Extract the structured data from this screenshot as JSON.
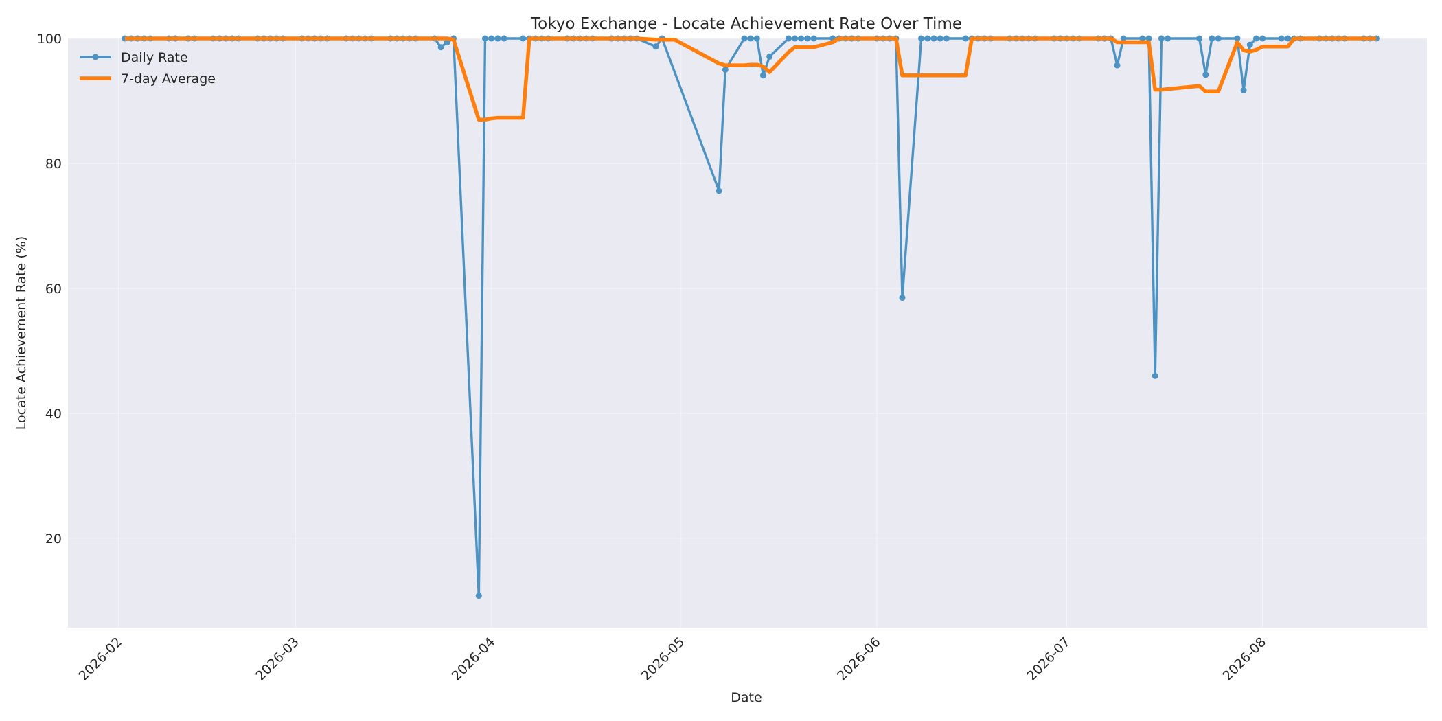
{
  "chart_data": {
    "type": "line",
    "title": "Tokyo Exchange - Locate Achievement Rate Over Time",
    "xlabel": "Date",
    "ylabel": "Locate Achievement Rate (%)",
    "xlim": [
      "2026-01-24",
      "2026-08-27"
    ],
    "ylim": [
      5.7,
      100
    ],
    "yticks": [
      20,
      40,
      60,
      80,
      100
    ],
    "xticks": [
      "2026-02-01",
      "2026-03-01",
      "2026-04-01",
      "2026-05-01",
      "2026-06-01",
      "2026-07-01",
      "2026-08-01"
    ],
    "xtick_labels": [
      "2026-02",
      "2026-03",
      "2026-04",
      "2026-05",
      "2026-06",
      "2026-07",
      "2026-08"
    ],
    "grid": true,
    "legend": "upper-left",
    "colors": {
      "background": "#eaeaf2",
      "daily": "#4c92c3",
      "average": "#ff7f0e"
    },
    "series": [
      {
        "name": "Daily Rate",
        "style": "line-markers",
        "points": [
          [
            "2026-02-02",
            100
          ],
          [
            "2026-02-03",
            100
          ],
          [
            "2026-02-04",
            100
          ],
          [
            "2026-02-05",
            100
          ],
          [
            "2026-02-06",
            100
          ],
          [
            "2026-02-09",
            100
          ],
          [
            "2026-02-10",
            100
          ],
          [
            "2026-02-12",
            100
          ],
          [
            "2026-02-13",
            100
          ],
          [
            "2026-02-16",
            100
          ],
          [
            "2026-02-17",
            100
          ],
          [
            "2026-02-18",
            100
          ],
          [
            "2026-02-19",
            100
          ],
          [
            "2026-02-20",
            100
          ],
          [
            "2026-02-23",
            100
          ],
          [
            "2026-02-24",
            100
          ],
          [
            "2026-02-25",
            100
          ],
          [
            "2026-02-26",
            100
          ],
          [
            "2026-02-27",
            100
          ],
          [
            "2026-03-02",
            100
          ],
          [
            "2026-03-03",
            100
          ],
          [
            "2026-03-04",
            100
          ],
          [
            "2026-03-05",
            100
          ],
          [
            "2026-03-06",
            100
          ],
          [
            "2026-03-09",
            100
          ],
          [
            "2026-03-10",
            100
          ],
          [
            "2026-03-11",
            100
          ],
          [
            "2026-03-12",
            100
          ],
          [
            "2026-03-13",
            100
          ],
          [
            "2026-03-16",
            100
          ],
          [
            "2026-03-17",
            100
          ],
          [
            "2026-03-18",
            100
          ],
          [
            "2026-03-19",
            100
          ],
          [
            "2026-03-20",
            100
          ],
          [
            "2026-03-23",
            100
          ],
          [
            "2026-03-24",
            98.6
          ],
          [
            "2026-03-25",
            99.4
          ],
          [
            "2026-03-26",
            100
          ],
          [
            "2026-03-30",
            10.8
          ],
          [
            "2026-03-31",
            100
          ],
          [
            "2026-04-01",
            100
          ],
          [
            "2026-04-02",
            100
          ],
          [
            "2026-04-03",
            100
          ],
          [
            "2026-04-06",
            100
          ],
          [
            "2026-04-07",
            100
          ],
          [
            "2026-04-08",
            100
          ],
          [
            "2026-04-09",
            100
          ],
          [
            "2026-04-10",
            100
          ],
          [
            "2026-04-13",
            100
          ],
          [
            "2026-04-14",
            100
          ],
          [
            "2026-04-15",
            100
          ],
          [
            "2026-04-16",
            100
          ],
          [
            "2026-04-17",
            100
          ],
          [
            "2026-04-20",
            100
          ],
          [
            "2026-04-21",
            100
          ],
          [
            "2026-04-22",
            100
          ],
          [
            "2026-04-23",
            100
          ],
          [
            "2026-04-24",
            100
          ],
          [
            "2026-04-27",
            98.7
          ],
          [
            "2026-04-28",
            100
          ],
          [
            "2026-05-07",
            75.6
          ],
          [
            "2026-05-08",
            95.0
          ],
          [
            "2026-05-11",
            100
          ],
          [
            "2026-05-12",
            100
          ],
          [
            "2026-05-13",
            100
          ],
          [
            "2026-05-14",
            94.1
          ],
          [
            "2026-05-15",
            97.1
          ],
          [
            "2026-05-18",
            100
          ],
          [
            "2026-05-19",
            100
          ],
          [
            "2026-05-20",
            100
          ],
          [
            "2026-05-21",
            100
          ],
          [
            "2026-05-22",
            100
          ],
          [
            "2026-05-25",
            100
          ],
          [
            "2026-05-26",
            100
          ],
          [
            "2026-05-27",
            100
          ],
          [
            "2026-05-28",
            100
          ],
          [
            "2026-05-29",
            100
          ],
          [
            "2026-06-01",
            100
          ],
          [
            "2026-06-02",
            100
          ],
          [
            "2026-06-03",
            100
          ],
          [
            "2026-06-04",
            100
          ],
          [
            "2026-06-05",
            58.5
          ],
          [
            "2026-06-08",
            100
          ],
          [
            "2026-06-09",
            100
          ],
          [
            "2026-06-10",
            100
          ],
          [
            "2026-06-11",
            100
          ],
          [
            "2026-06-12",
            100
          ],
          [
            "2026-06-15",
            100
          ],
          [
            "2026-06-16",
            100
          ],
          [
            "2026-06-17",
            100
          ],
          [
            "2026-06-18",
            100
          ],
          [
            "2026-06-19",
            100
          ],
          [
            "2026-06-22",
            100
          ],
          [
            "2026-06-23",
            100
          ],
          [
            "2026-06-24",
            100
          ],
          [
            "2026-06-25",
            100
          ],
          [
            "2026-06-26",
            100
          ],
          [
            "2026-06-29",
            100
          ],
          [
            "2026-06-30",
            100
          ],
          [
            "2026-07-01",
            100
          ],
          [
            "2026-07-02",
            100
          ],
          [
            "2026-07-03",
            100
          ],
          [
            "2026-07-06",
            100
          ],
          [
            "2026-07-07",
            100
          ],
          [
            "2026-07-08",
            100
          ],
          [
            "2026-07-09",
            95.7
          ],
          [
            "2026-07-10",
            100
          ],
          [
            "2026-07-13",
            100
          ],
          [
            "2026-07-14",
            100
          ],
          [
            "2026-07-15",
            46.0
          ],
          [
            "2026-07-16",
            100
          ],
          [
            "2026-07-17",
            100
          ],
          [
            "2026-07-22",
            100
          ],
          [
            "2026-07-23",
            94.2
          ],
          [
            "2026-07-24",
            100
          ],
          [
            "2026-07-25",
            100
          ],
          [
            "2026-07-28",
            100
          ],
          [
            "2026-07-29",
            91.7
          ],
          [
            "2026-07-30",
            99.0
          ],
          [
            "2026-07-31",
            100
          ],
          [
            "2026-08-01",
            100
          ],
          [
            "2026-08-04",
            100
          ],
          [
            "2026-08-05",
            100
          ],
          [
            "2026-08-06",
            100
          ],
          [
            "2026-08-07",
            100
          ],
          [
            "2026-08-10",
            100
          ],
          [
            "2026-08-11",
            100
          ],
          [
            "2026-08-12",
            100
          ],
          [
            "2026-08-13",
            100
          ],
          [
            "2026-08-14",
            100
          ],
          [
            "2026-08-17",
            100
          ],
          [
            "2026-08-18",
            100
          ],
          [
            "2026-08-19",
            100
          ]
        ]
      },
      {
        "name": "7-day Average",
        "style": "line",
        "points": [
          [
            "2026-02-02",
            100
          ],
          [
            "2026-03-25",
            100
          ],
          [
            "2026-03-26",
            99.8
          ],
          [
            "2026-03-30",
            87.0
          ],
          [
            "2026-03-31",
            87.0
          ],
          [
            "2026-04-01",
            87.2
          ],
          [
            "2026-04-02",
            87.3
          ],
          [
            "2026-04-06",
            87.3
          ],
          [
            "2026-04-07",
            100
          ],
          [
            "2026-04-24",
            100
          ],
          [
            "2026-04-27",
            99.8
          ],
          [
            "2026-04-30",
            99.8
          ],
          [
            "2026-05-07",
            96.0
          ],
          [
            "2026-05-08",
            95.7
          ],
          [
            "2026-05-11",
            95.7
          ],
          [
            "2026-05-12",
            95.8
          ],
          [
            "2026-05-13",
            95.8
          ],
          [
            "2026-05-14",
            95.5
          ],
          [
            "2026-05-15",
            94.6
          ],
          [
            "2026-05-18",
            97.8
          ],
          [
            "2026-05-19",
            98.6
          ],
          [
            "2026-05-22",
            98.6
          ],
          [
            "2026-05-25",
            99.4
          ],
          [
            "2026-05-26",
            100
          ],
          [
            "2026-06-04",
            100
          ],
          [
            "2026-06-05",
            94.1
          ],
          [
            "2026-06-15",
            94.1
          ],
          [
            "2026-06-16",
            100
          ],
          [
            "2026-07-08",
            100
          ],
          [
            "2026-07-09",
            99.4
          ],
          [
            "2026-07-14",
            99.4
          ],
          [
            "2026-07-15",
            91.8
          ],
          [
            "2026-07-16",
            91.8
          ],
          [
            "2026-07-22",
            92.4
          ],
          [
            "2026-07-23",
            91.5
          ],
          [
            "2026-07-25",
            91.5
          ],
          [
            "2026-07-28",
            99.4
          ],
          [
            "2026-07-29",
            98.1
          ],
          [
            "2026-07-30",
            97.9
          ],
          [
            "2026-07-31",
            98.2
          ],
          [
            "2026-08-01",
            98.7
          ],
          [
            "2026-08-05",
            98.7
          ],
          [
            "2026-08-06",
            100
          ],
          [
            "2026-08-19",
            100
          ]
        ]
      }
    ]
  }
}
